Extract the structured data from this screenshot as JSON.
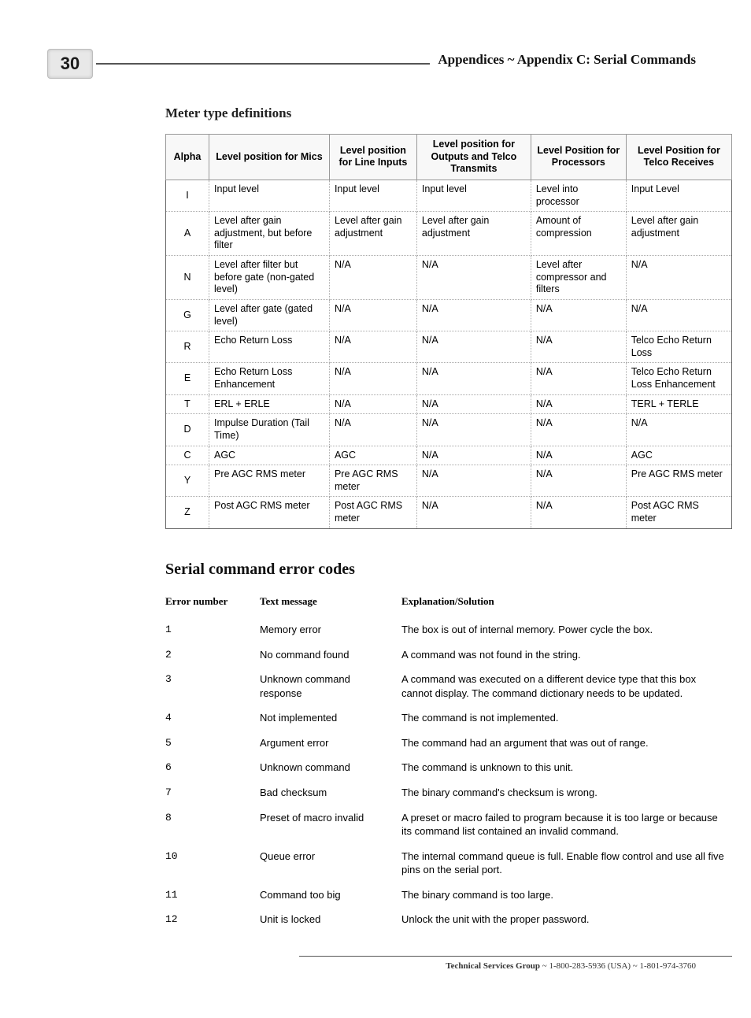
{
  "page_number": "30",
  "header": {
    "appendices": "Appendices ~",
    "subtitle": " Appendix C: Serial Commands"
  },
  "meter_section": {
    "title": "Meter type definitions",
    "columns": [
      "Alpha",
      "Level position for Mics",
      "Level position for Line Inputs",
      "Level position for Outputs and Telco Transmits",
      "Level Position for Processors",
      "Level Position for Telco Receives"
    ],
    "rows": [
      {
        "alpha": "I",
        "c1": "Input level",
        "c2": "Input level",
        "c3": "Input level",
        "c4": "Level into processor",
        "c5": "Input Level"
      },
      {
        "alpha": "A",
        "c1": "Level after gain adjustment, but before filter",
        "c2": "Level after gain adjustment",
        "c3": "Level after gain adjustment",
        "c4": "Amount of compression",
        "c5": "Level after gain adjustment"
      },
      {
        "alpha": "N",
        "c1": "Level after filter but before gate (non-gated level)",
        "c2": "N/A",
        "c3": "N/A",
        "c4": "Level after compressor and filters",
        "c5": "N/A"
      },
      {
        "alpha": "G",
        "c1": "Level after gate (gated level)",
        "c2": "N/A",
        "c3": "N/A",
        "c4": "N/A",
        "c5": "N/A"
      },
      {
        "alpha": "R",
        "c1": "Echo Return Loss",
        "c2": "N/A",
        "c3": "N/A",
        "c4": "N/A",
        "c5": "Telco Echo Return Loss"
      },
      {
        "alpha": "E",
        "c1": "Echo Return Loss Enhancement",
        "c2": "N/A",
        "c3": "N/A",
        "c4": "N/A",
        "c5": "Telco Echo Return Loss Enhancement"
      },
      {
        "alpha": "T",
        "c1": "ERL + ERLE",
        "c2": "N/A",
        "c3": "N/A",
        "c4": "N/A",
        "c5": "TERL + TERLE"
      },
      {
        "alpha": "D",
        "c1": "Impulse Duration (Tail Time)",
        "c2": "N/A",
        "c3": "N/A",
        "c4": "N/A",
        "c5": "N/A"
      },
      {
        "alpha": "C",
        "c1": "AGC",
        "c2": "AGC",
        "c3": "N/A",
        "c4": "N/A",
        "c5": "AGC"
      },
      {
        "alpha": "Y",
        "c1": "Pre AGC RMS meter",
        "c2": "Pre AGC RMS meter",
        "c3": "N/A",
        "c4": "N/A",
        "c5": "Pre AGC RMS meter"
      },
      {
        "alpha": "Z",
        "c1": "Post AGC RMS meter",
        "c2": "Post AGC RMS meter",
        "c3": "N/A",
        "c4": "N/A",
        "c5": "Post AGC RMS meter"
      }
    ]
  },
  "error_section": {
    "title": "Serial command error codes",
    "columns": [
      "Error number",
      "Text message",
      "Explanation/Solution"
    ],
    "rows": [
      {
        "num": "1",
        "msg": "Memory error",
        "exp": "The box is out of internal memory. Power cycle the box."
      },
      {
        "num": "2",
        "msg": "No command found",
        "exp": "A command was not found in the string."
      },
      {
        "num": "3",
        "msg": "Unknown command response",
        "exp": "A command was executed on a different device type that this box cannot display. The command dictionary needs to be updated."
      },
      {
        "num": "4",
        "msg": "Not implemented",
        "exp": "The command is not implemented."
      },
      {
        "num": "5",
        "msg": "Argument error",
        "exp": "The command had an argument that was out of range."
      },
      {
        "num": "6",
        "msg": "Unknown command",
        "exp": "The command is unknown to this unit."
      },
      {
        "num": "7",
        "msg": "Bad checksum",
        "exp": "The binary command's checksum is wrong."
      },
      {
        "num": "8",
        "msg": "Preset of macro invalid",
        "exp": "A preset or macro failed to program because it is too large or because its command list contained an invalid command."
      },
      {
        "num": "10",
        "msg": "Queue error",
        "exp": "The internal command queue is full. Enable flow control and use all five pins on the serial port."
      },
      {
        "num": "11",
        "msg": "Command too big",
        "exp": "The binary command is too large."
      },
      {
        "num": "12",
        "msg": "Unit is locked",
        "exp": "Unlock the unit with the proper password."
      }
    ]
  },
  "footer": {
    "tsg": "Technical Services Group",
    "rest": " ~ 1-800-283-5936 (USA) ~ 1-801-974-3760"
  }
}
